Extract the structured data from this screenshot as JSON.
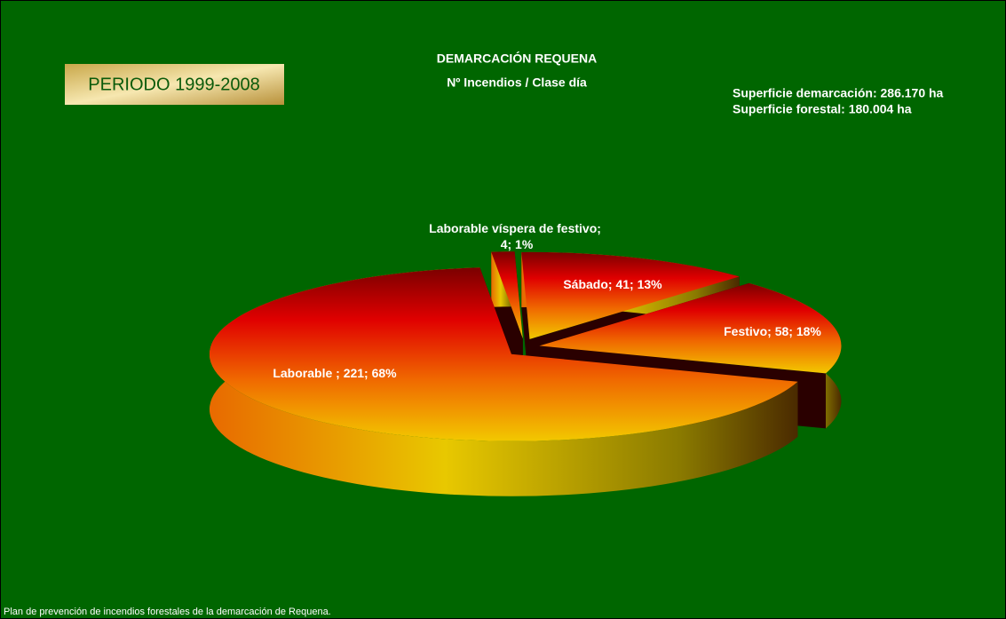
{
  "chart_data": {
    "type": "pie",
    "title": "DEMARCACIÓN REQUENA",
    "subtitle": "Nº Incendios / Clase día",
    "period": "PERIODO 1999-2008",
    "annotations": [
      "Superficie demarcación: 286.170 ha",
      "Superficie forestal: 180.004 ha"
    ],
    "footer": "Plan de prevención de incendios forestales de la demarcación de Requena.",
    "categories": [
      "Laborable víspera de festivo",
      "Sábado",
      "Festivo",
      "Laborable "
    ],
    "values": [
      4,
      41,
      58,
      221
    ],
    "value_labels": [
      "4; 1%",
      "41; 13%",
      "58; 18%",
      "221; 68%"
    ],
    "label_separator": "; "
  }
}
